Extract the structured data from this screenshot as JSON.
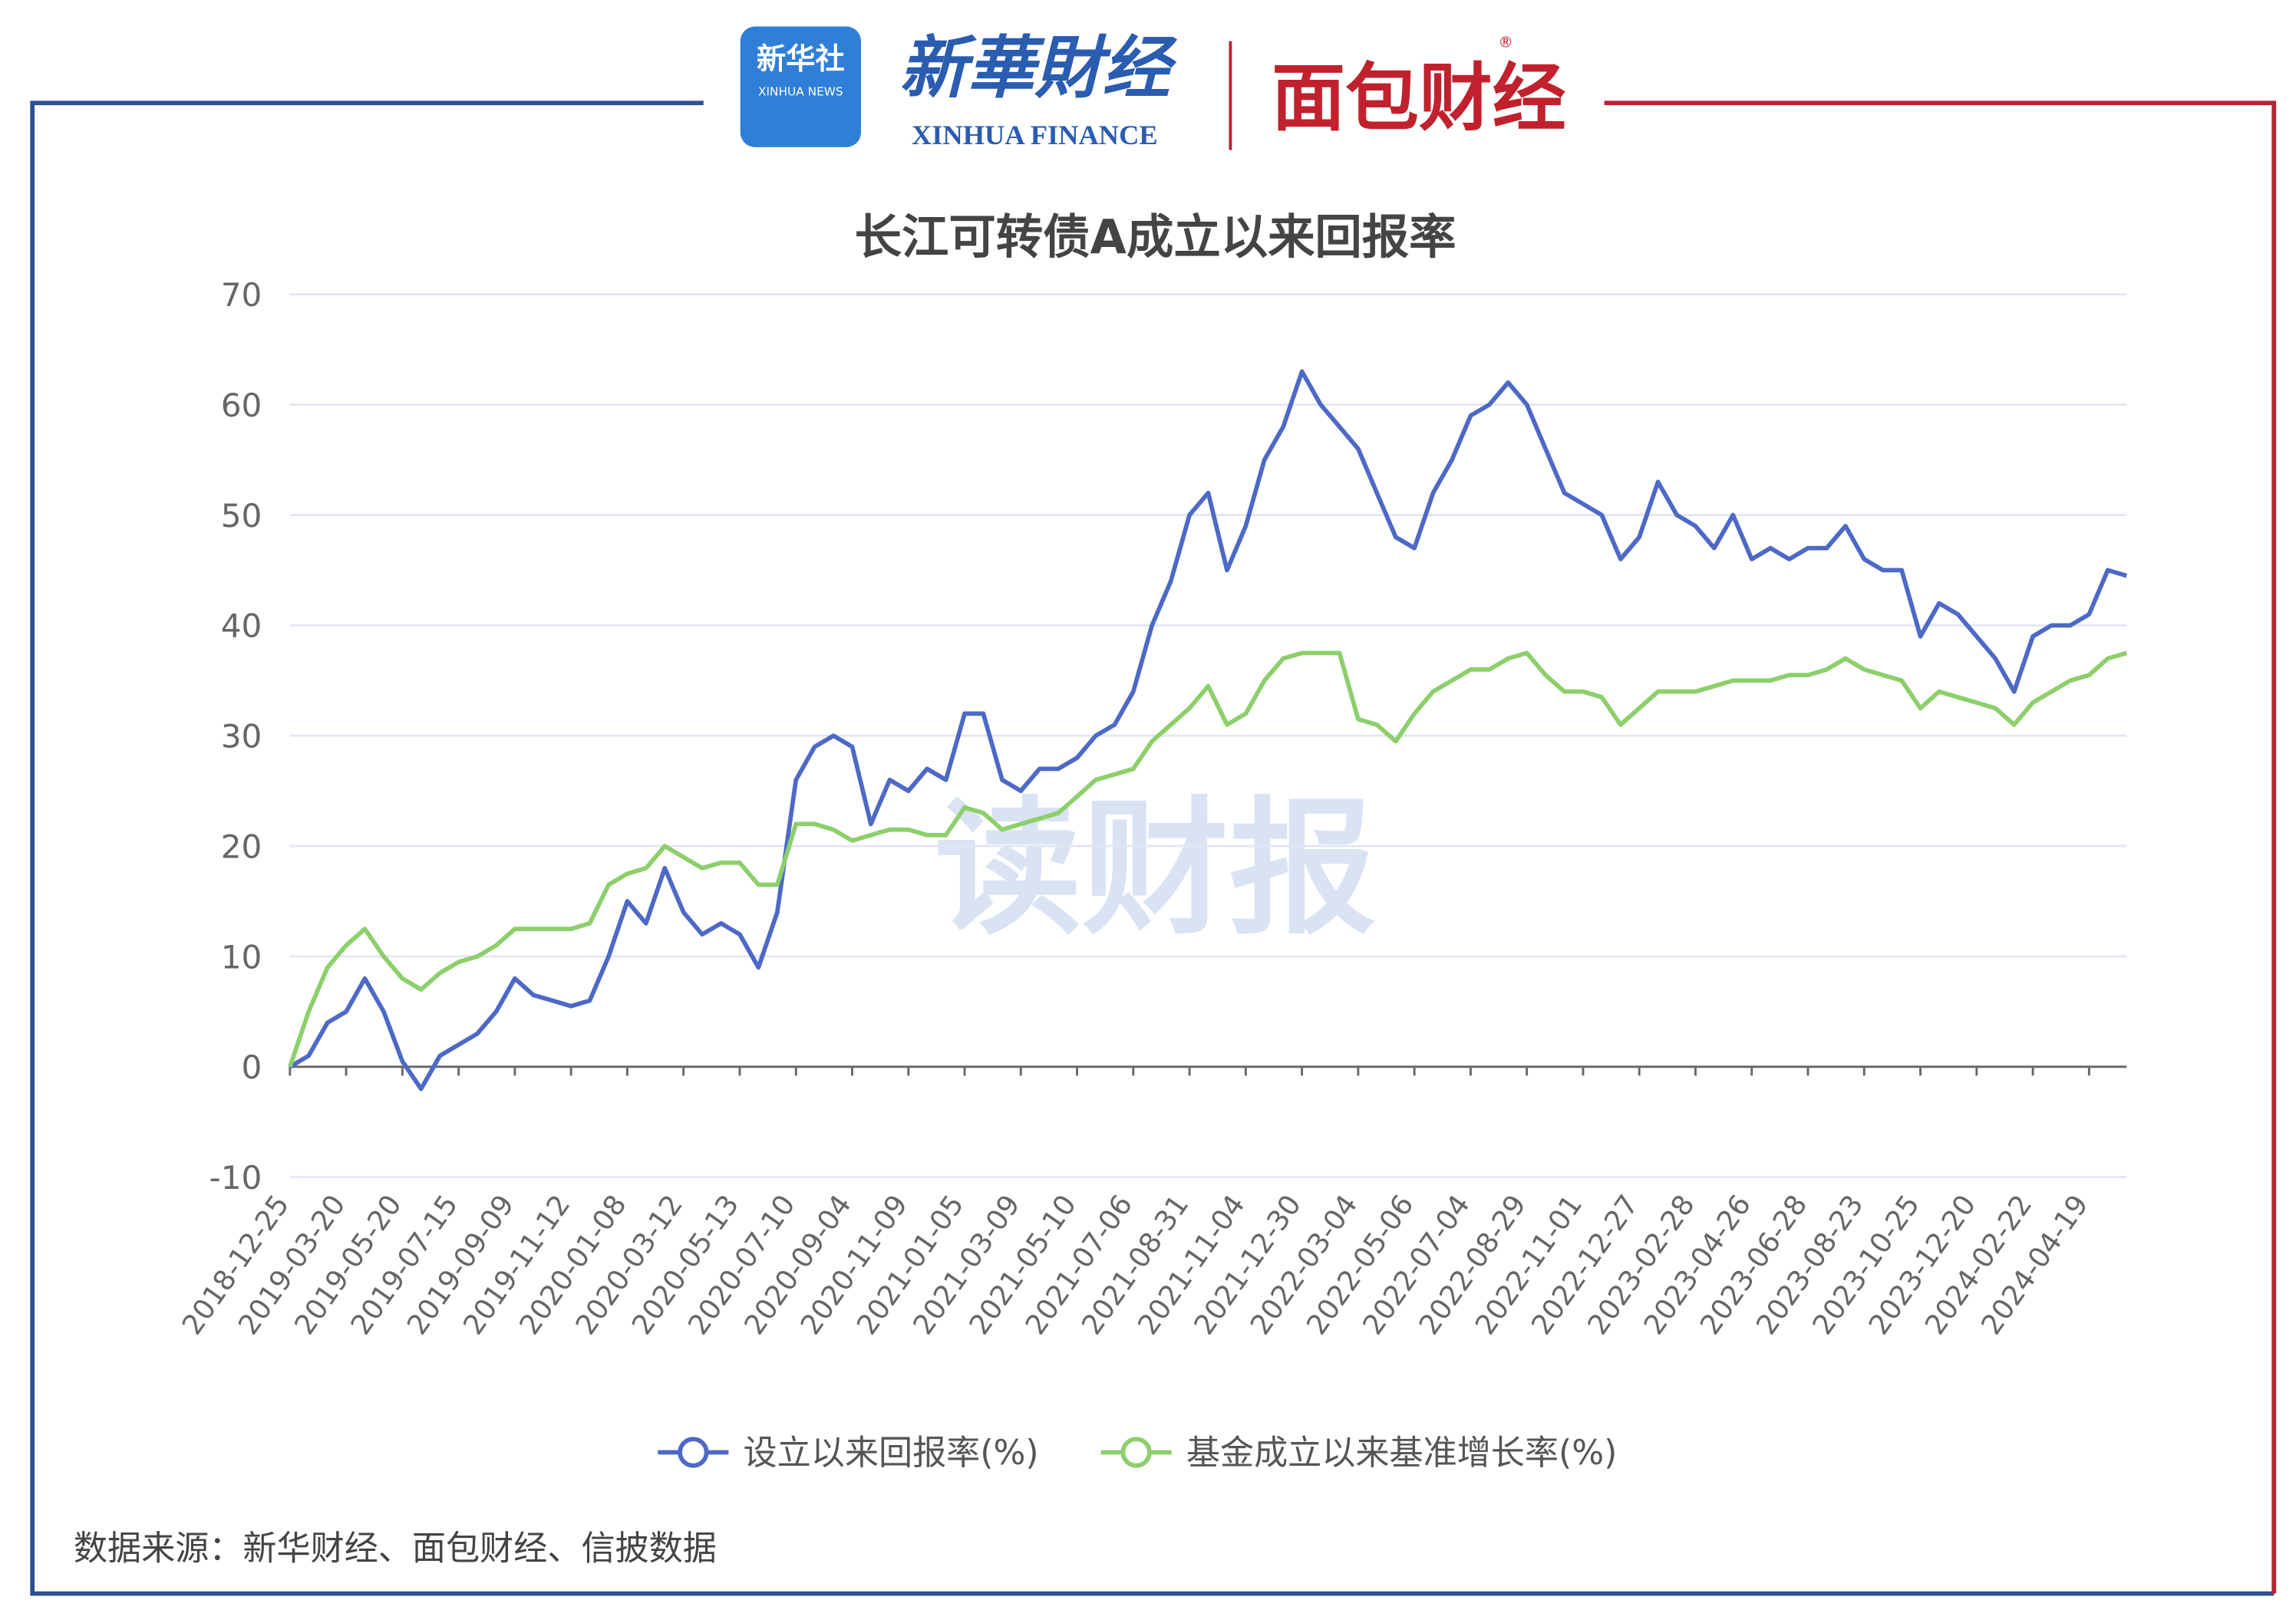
{
  "header": {
    "logo1_cn": "新华社",
    "logo1_en": "XINHUA NEWS",
    "logo2_cn": "新華財经",
    "logo2_en": "XINHUA FINANCE",
    "logo3": "面包财经",
    "mark": "®"
  },
  "watermark": "读财报",
  "source": "数据来源：新华财经、面包财经、信披数据",
  "chart_data": {
    "type": "line",
    "title": "长江可转债A成立以来回报率",
    "categories": [
      "2018-12-25",
      null,
      null,
      "2019-03-20",
      null,
      null,
      "2019-05-20",
      null,
      null,
      "2019-07-15",
      null,
      null,
      "2019-09-09",
      null,
      null,
      "2019-11-12",
      null,
      null,
      "2020-01-08",
      null,
      null,
      "2020-03-12",
      null,
      null,
      "2020-05-13",
      null,
      null,
      "2020-07-10",
      null,
      null,
      "2020-09-04",
      null,
      null,
      "2020-11-09",
      null,
      null,
      "2021-01-05",
      null,
      null,
      "2021-03-09",
      null,
      null,
      "2021-05-10",
      null,
      null,
      "2021-07-06",
      null,
      null,
      "2021-08-31",
      null,
      null,
      "2021-11-04",
      null,
      null,
      "2021-12-30",
      null,
      null,
      "2022-03-04",
      null,
      null,
      "2022-05-06",
      null,
      null,
      "2022-07-04",
      null,
      null,
      "2022-08-29",
      null,
      null,
      "2022-11-01",
      null,
      null,
      "2022-12-27",
      null,
      null,
      "2023-02-28",
      null,
      null,
      "2023-04-26",
      null,
      null,
      "2023-06-28",
      null,
      null,
      "2023-08-23",
      null,
      null,
      "2023-10-25",
      null,
      null,
      "2023-12-20",
      null,
      null,
      "2024-02-22",
      null,
      null,
      "2024-04-19",
      null,
      null
    ],
    "series": [
      {
        "name": "设立以来回报率(%)",
        "color": "#4d69c6",
        "values": [
          0,
          1,
          4,
          5,
          8,
          5,
          0.5,
          -2,
          1,
          2,
          3,
          5,
          8,
          6.5,
          6,
          5.5,
          6,
          10,
          15,
          13,
          18,
          14,
          12,
          13,
          12,
          9,
          14,
          26,
          29,
          30,
          29,
          22,
          26,
          25,
          27,
          26,
          32,
          32,
          26,
          25,
          27,
          27,
          28,
          30,
          31,
          34,
          40,
          44,
          50,
          52,
          45,
          49,
          55,
          58,
          63,
          60,
          58,
          56,
          52,
          48,
          47,
          52,
          55,
          59,
          60,
          62,
          60,
          56,
          52,
          51,
          50,
          46,
          48,
          53,
          50,
          49,
          47,
          50,
          46,
          47,
          46,
          47,
          47,
          49,
          46,
          45,
          45,
          39,
          42,
          41,
          39,
          37,
          34,
          39,
          40,
          40,
          41,
          45,
          44.5
        ]
      },
      {
        "name": "基金成立以来基准增长率(%)",
        "color": "#8ccf6b",
        "values": [
          0,
          5,
          9,
          11,
          12.5,
          10,
          8,
          7,
          8.5,
          9.5,
          10,
          11,
          12.5,
          12.5,
          12.5,
          12.5,
          13,
          16.5,
          17.5,
          18,
          20,
          19,
          18,
          18.5,
          18.5,
          16.5,
          16.5,
          22,
          22,
          21.5,
          20.5,
          21,
          21.5,
          21.5,
          21,
          21,
          23.5,
          23,
          21.5,
          22,
          22.5,
          23,
          24.5,
          26,
          26.5,
          27,
          29.5,
          31,
          32.5,
          34.5,
          31,
          32,
          35,
          37,
          37.5,
          37.5,
          37.5,
          31.5,
          31,
          29.5,
          32,
          34,
          35,
          36,
          36,
          37,
          37.5,
          35.5,
          34,
          34,
          33.5,
          31,
          32.5,
          34,
          34,
          34,
          34.5,
          35,
          35,
          35,
          35.5,
          35.5,
          36,
          37,
          36,
          35.5,
          35,
          32.5,
          34,
          33.5,
          33,
          32.5,
          31,
          33,
          34,
          35,
          35.5,
          37,
          37.5
        ]
      }
    ],
    "ylim": [
      -10,
      70
    ],
    "yticks": [
      -10,
      0,
      10,
      20,
      30,
      40,
      50,
      60,
      70
    ],
    "grid": true
  }
}
